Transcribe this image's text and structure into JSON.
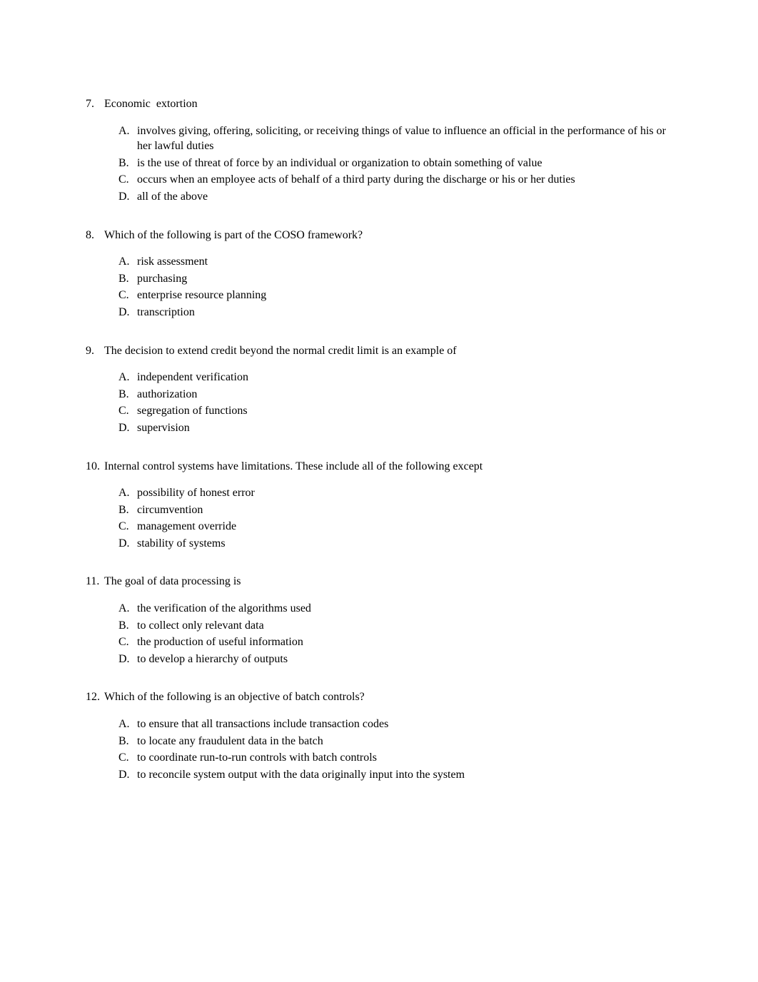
{
  "questions": [
    {
      "number": "7.",
      "text": "Economic  extortion",
      "options": [
        {
          "letter": "A.",
          "text": "involves giving, offering, soliciting, or receiving things of value to influence an official in the performance of his or her lawful duties"
        },
        {
          "letter": "B.",
          "text": "is the use of threat of force by an individual or organization to obtain something of value"
        },
        {
          "letter": "C.",
          "text": "occurs when an employee acts of behalf of a third party during the discharge or his or her duties"
        },
        {
          "letter": "D.",
          "text": "all of the above"
        }
      ]
    },
    {
      "number": "8.",
      "text": "Which of the following is part of the COSO framework?",
      "options": [
        {
          "letter": "A.",
          "text": "risk assessment"
        },
        {
          "letter": "B.",
          "text": "purchasing"
        },
        {
          "letter": "C.",
          "text": "enterprise resource planning"
        },
        {
          "letter": "D.",
          "text": "transcription"
        }
      ]
    },
    {
      "number": "9.",
      "text": "The decision to extend credit beyond the normal credit limit is an example of",
      "options": [
        {
          "letter": "A.",
          "text": "independent verification"
        },
        {
          "letter": "B.",
          "text": "authorization"
        },
        {
          "letter": "C.",
          "text": "segregation of functions"
        },
        {
          "letter": "D.",
          "text": "supervision"
        }
      ]
    },
    {
      "number": "10.",
      "text": "Internal control systems have limitations. These include all of the following except",
      "options": [
        {
          "letter": "A.",
          "text": "possibility of honest error"
        },
        {
          "letter": "B.",
          "text": "circumvention"
        },
        {
          "letter": "C.",
          "text": "management override"
        },
        {
          "letter": "D.",
          "text": "stability of systems"
        }
      ]
    },
    {
      "number": "11.",
      "text": "The goal of data processing is",
      "options": [
        {
          "letter": "A.",
          "text": "the verification of the algorithms used"
        },
        {
          "letter": "B.",
          "text": "to collect only relevant data"
        },
        {
          "letter": "C.",
          "text": "the production of useful information"
        },
        {
          "letter": "D.",
          "text": "to develop a hierarchy of outputs"
        }
      ]
    },
    {
      "number": "12.",
      "text": "Which of the following is an objective of batch controls?",
      "options": [
        {
          "letter": "A.",
          "text": "to ensure that all transactions include transaction codes"
        },
        {
          "letter": "B.",
          "text": "to locate any fraudulent data in the batch"
        },
        {
          "letter": "C.",
          "text": "to coordinate run-to-run controls with batch controls"
        },
        {
          "letter": "D.",
          "text": "to reconcile system output with the data originally input into the system"
        }
      ]
    }
  ]
}
